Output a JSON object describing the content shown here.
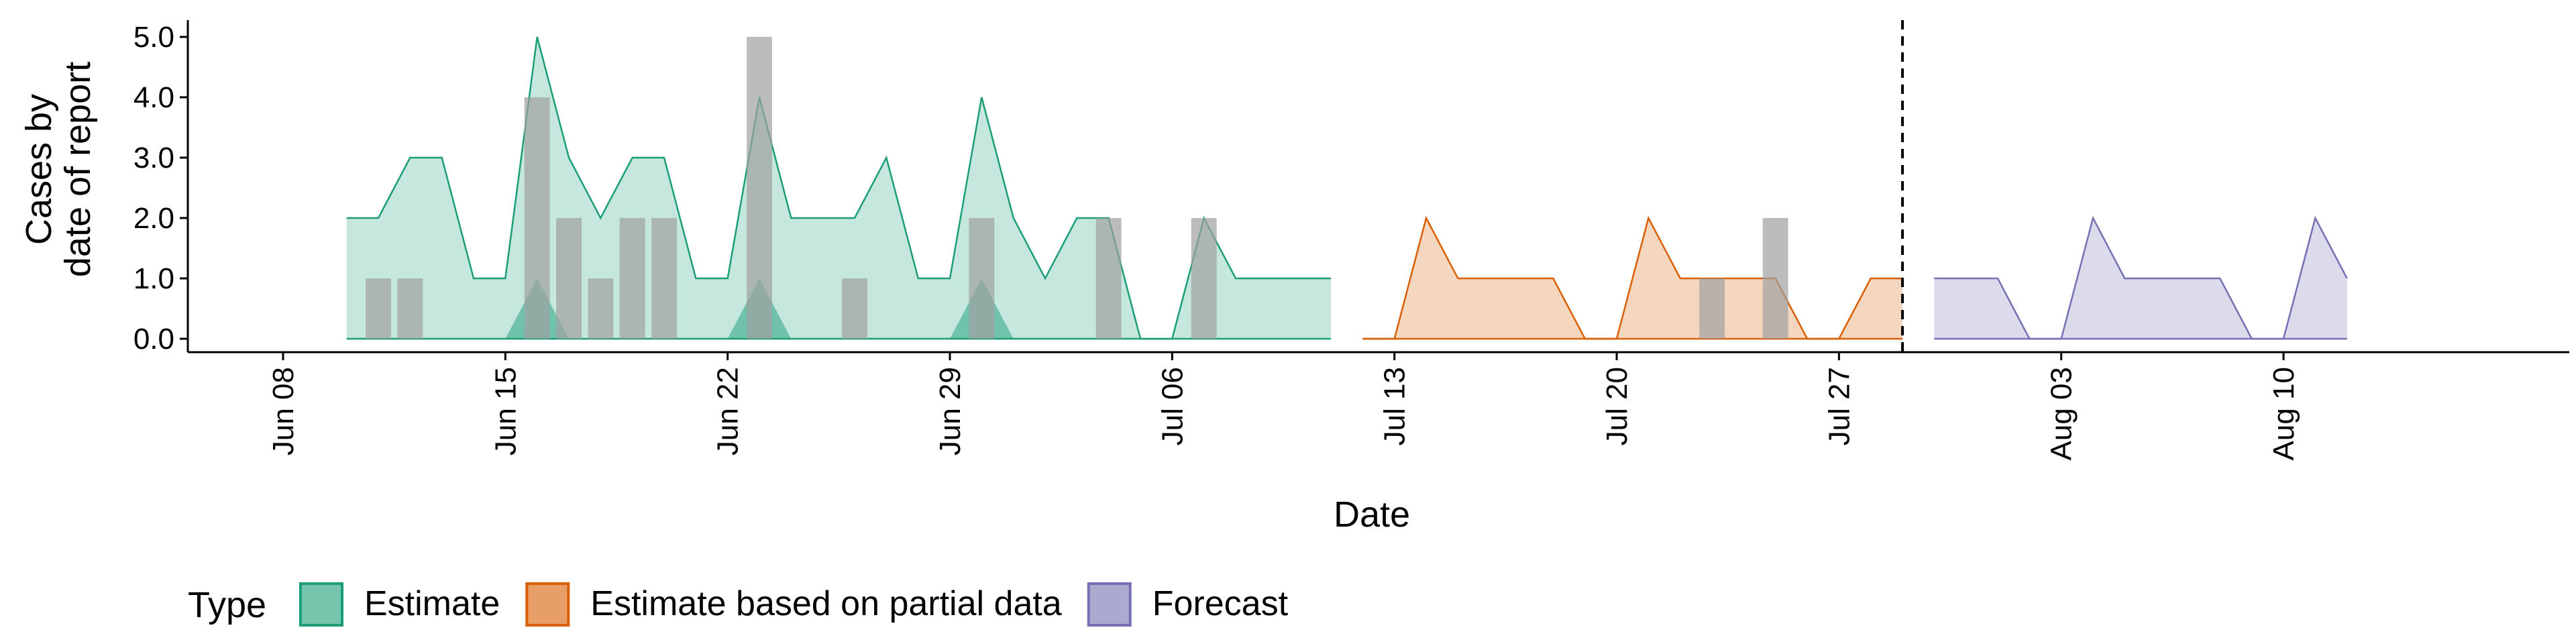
{
  "chart_data": {
    "type": "area",
    "xlabel": "Date",
    "ylabel_lines": [
      "Cases by",
      "date of report"
    ],
    "yticks": [
      0,
      1,
      2,
      3,
      4,
      5
    ],
    "ytick_labels": [
      "0.0",
      "1.0",
      "2.0",
      "3.0",
      "4.0",
      "5.0"
    ],
    "x_axis": {
      "start": "2020-06-05",
      "end": "2020-08-19"
    },
    "xticks": [
      {
        "date": "2020-06-08",
        "label": "Jun 08"
      },
      {
        "date": "2020-06-15",
        "label": "Jun 15"
      },
      {
        "date": "2020-06-22",
        "label": "Jun 22"
      },
      {
        "date": "2020-06-29",
        "label": "Jun 29"
      },
      {
        "date": "2020-07-06",
        "label": "Jul 06"
      },
      {
        "date": "2020-07-13",
        "label": "Jul 13"
      },
      {
        "date": "2020-07-20",
        "label": "Jul 20"
      },
      {
        "date": "2020-07-27",
        "label": "Jul 27"
      },
      {
        "date": "2020-08-03",
        "label": "Aug 03"
      },
      {
        "date": "2020-08-10",
        "label": "Aug 10"
      }
    ],
    "ylim": [
      0,
      5
    ],
    "vline": "2020-07-29",
    "legend": {
      "title": "Type",
      "position": "bottom",
      "entries": [
        {
          "label": "Estimate",
          "color": "#1b9e77"
        },
        {
          "label": "Estimate based on partial data",
          "color": "#d95f02"
        },
        {
          "label": "Forecast",
          "color": "#7570b3"
        }
      ]
    },
    "observed_bars": {
      "color": "#a0a0a0",
      "points": [
        {
          "date": "2020-06-11",
          "value": 1
        },
        {
          "date": "2020-06-12",
          "value": 1
        },
        {
          "date": "2020-06-16",
          "value": 4
        },
        {
          "date": "2020-06-17",
          "value": 2
        },
        {
          "date": "2020-06-18",
          "value": 1
        },
        {
          "date": "2020-06-19",
          "value": 2
        },
        {
          "date": "2020-06-20",
          "value": 2
        },
        {
          "date": "2020-06-23",
          "value": 5
        },
        {
          "date": "2020-06-26",
          "value": 1
        },
        {
          "date": "2020-06-30",
          "value": 2
        },
        {
          "date": "2020-07-04",
          "value": 2
        },
        {
          "date": "2020-07-07",
          "value": 2
        },
        {
          "date": "2020-07-23",
          "value": 1
        },
        {
          "date": "2020-07-25",
          "value": 2
        }
      ]
    },
    "series": [
      {
        "name": "Estimate",
        "color": "#1b9e77",
        "upper": [
          [
            "2020-06-10",
            2
          ],
          [
            "2020-06-11",
            2
          ],
          [
            "2020-06-12",
            3
          ],
          [
            "2020-06-13",
            3
          ],
          [
            "2020-06-14",
            1
          ],
          [
            "2020-06-15",
            1
          ],
          [
            "2020-06-16",
            5
          ],
          [
            "2020-06-17",
            3
          ],
          [
            "2020-06-18",
            2
          ],
          [
            "2020-06-19",
            3
          ],
          [
            "2020-06-20",
            3
          ],
          [
            "2020-06-21",
            1
          ],
          [
            "2020-06-22",
            1
          ],
          [
            "2020-06-23",
            4
          ],
          [
            "2020-06-24",
            2
          ],
          [
            "2020-06-25",
            2
          ],
          [
            "2020-06-26",
            2
          ],
          [
            "2020-06-27",
            3
          ],
          [
            "2020-06-28",
            1
          ],
          [
            "2020-06-29",
            1
          ],
          [
            "2020-06-30",
            4
          ],
          [
            "2020-07-01",
            2
          ],
          [
            "2020-07-02",
            1
          ],
          [
            "2020-07-03",
            2
          ],
          [
            "2020-07-04",
            2
          ],
          [
            "2020-07-05",
            0
          ],
          [
            "2020-07-06",
            0
          ],
          [
            "2020-07-07",
            2
          ],
          [
            "2020-07-08",
            1
          ],
          [
            "2020-07-09",
            1
          ],
          [
            "2020-07-10",
            1
          ],
          [
            "2020-07-11",
            1
          ]
        ],
        "inner": [
          [
            "2020-06-15",
            0
          ],
          [
            "2020-06-16",
            1
          ],
          [
            "2020-06-17",
            0
          ],
          [
            "2020-06-22",
            0
          ],
          [
            "2020-06-23",
            1
          ],
          [
            "2020-06-24",
            0
          ],
          [
            "2020-06-29",
            0
          ],
          [
            "2020-06-30",
            1
          ],
          [
            "2020-07-01",
            0
          ]
        ]
      },
      {
        "name": "Estimate based on partial data",
        "color": "#d95f02",
        "upper": [
          [
            "2020-07-12",
            0
          ],
          [
            "2020-07-13",
            0
          ],
          [
            "2020-07-14",
            2
          ],
          [
            "2020-07-15",
            1
          ],
          [
            "2020-07-16",
            1
          ],
          [
            "2020-07-17",
            1
          ],
          [
            "2020-07-18",
            1
          ],
          [
            "2020-07-19",
            0
          ],
          [
            "2020-07-20",
            0
          ],
          [
            "2020-07-21",
            2
          ],
          [
            "2020-07-22",
            1
          ],
          [
            "2020-07-23",
            1
          ],
          [
            "2020-07-24",
            1
          ],
          [
            "2020-07-25",
            1
          ],
          [
            "2020-07-26",
            0
          ],
          [
            "2020-07-27",
            0
          ],
          [
            "2020-07-28",
            1
          ],
          [
            "2020-07-29",
            1
          ]
        ]
      },
      {
        "name": "Forecast",
        "color": "#7570b3",
        "upper": [
          [
            "2020-07-30",
            1
          ],
          [
            "2020-07-31",
            1
          ],
          [
            "2020-08-01",
            1
          ],
          [
            "2020-08-02",
            0
          ],
          [
            "2020-08-03",
            0
          ],
          [
            "2020-08-04",
            2
          ],
          [
            "2020-08-05",
            1
          ],
          [
            "2020-08-06",
            1
          ],
          [
            "2020-08-07",
            1
          ],
          [
            "2020-08-08",
            1
          ],
          [
            "2020-08-09",
            0
          ],
          [
            "2020-08-10",
            0
          ],
          [
            "2020-08-11",
            2
          ],
          [
            "2020-08-12",
            1
          ]
        ]
      }
    ]
  }
}
